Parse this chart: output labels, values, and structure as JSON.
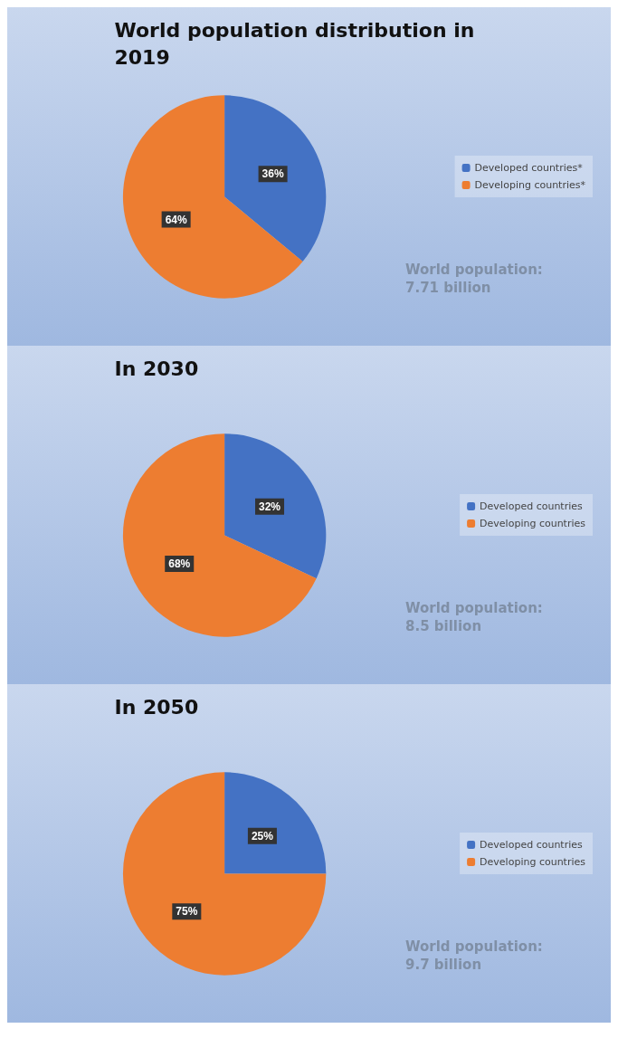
{
  "chart_data": [
    {
      "type": "pie",
      "title": "World population distribution in 2019",
      "categories": [
        "Developed countries*",
        "Developing countries*"
      ],
      "values": [
        36,
        64
      ],
      "value_labels": [
        "36%",
        "64%"
      ],
      "colors": [
        "#4472c4",
        "#ed7d31"
      ],
      "legend": "right",
      "annotations": [
        "World population:",
        "7.71 billion"
      ]
    },
    {
      "type": "pie",
      "title": "In 2030",
      "categories": [
        "Developed countries",
        "Developing countries"
      ],
      "values": [
        32,
        68
      ],
      "value_labels": [
        "32%",
        "68%"
      ],
      "colors": [
        "#4472c4",
        "#ed7d31"
      ],
      "legend": "right",
      "annotations": [
        "World population:",
        "8.5 billion"
      ]
    },
    {
      "type": "pie",
      "title": "In 2050",
      "categories": [
        "Developed countries",
        "Developing countries"
      ],
      "values": [
        25,
        75
      ],
      "value_labels": [
        "25%",
        "75%"
      ],
      "colors": [
        "#4472c4",
        "#ed7d31"
      ],
      "legend": "right",
      "annotations": [
        "World population:",
        "9.7 billion"
      ]
    }
  ]
}
